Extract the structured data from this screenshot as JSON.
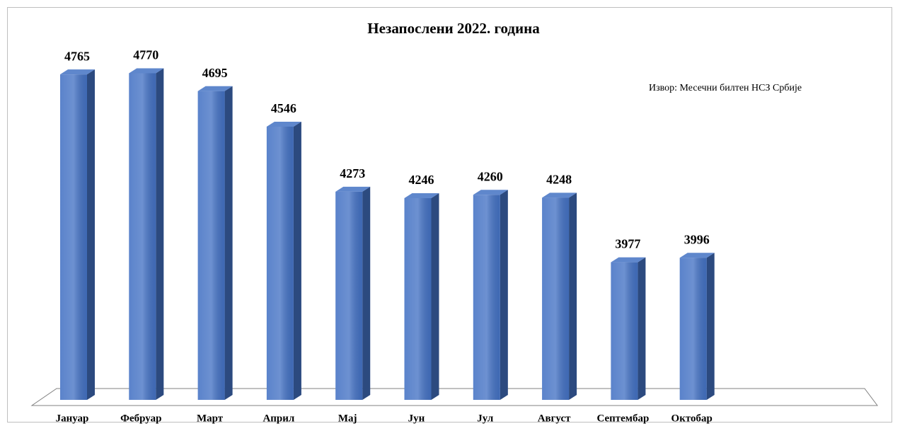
{
  "chart_data": {
    "type": "bar3d",
    "title": "Незапослени 2022. година",
    "annotation": "Извор: Месечни билтен НСЗ Србије",
    "categories": [
      "Јануар",
      "Фебруар",
      "Март",
      "Април",
      "Мај",
      "Јун",
      "Јул",
      "Август",
      "Септембар",
      "Октобар"
    ],
    "values": [
      4765,
      4770,
      4695,
      4546,
      4273,
      4246,
      4260,
      4248,
      3977,
      3996
    ],
    "color": "#4472c4",
    "ylim": [
      3400,
      5000
    ]
  }
}
